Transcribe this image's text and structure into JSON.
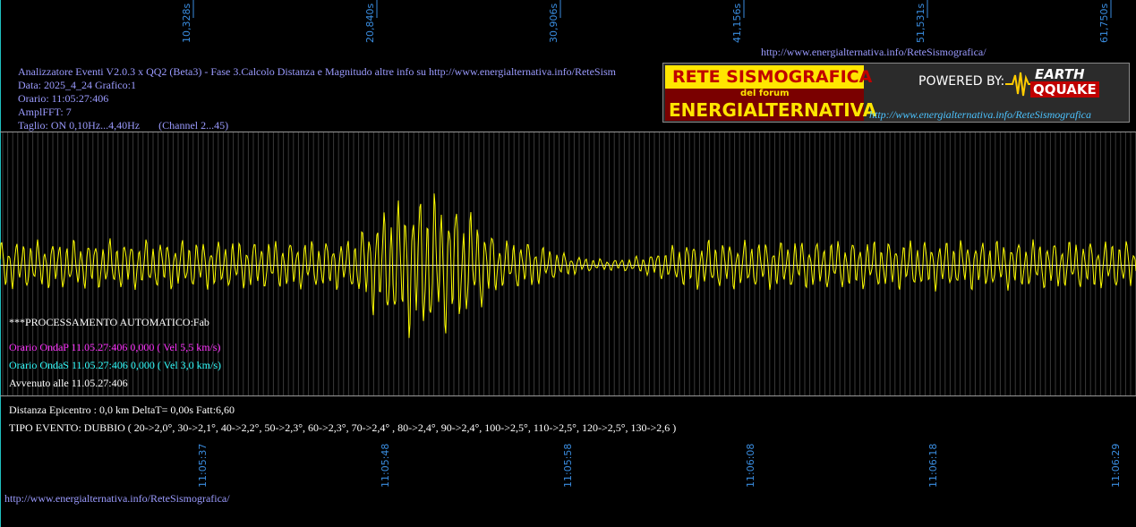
{
  "top_url": "http://www.energialternativa.info/ReteSismografica/",
  "time_axis_top": [
    "10,328s",
    "20,840s",
    "30,906s",
    "41,156s",
    "51,531s",
    "61,750s"
  ],
  "header": {
    "lines": [
      "Analizzatore Eventi V2.0.3 x QQ2 (Beta3) - Fase 3.Calcolo Distanza e Magnitudo altre info su http://www.energialternativa.info/ReteSism",
      "Data: 2025_4_24 Grafico:1",
      "Orario: 11:05:27:406",
      "AmplFFT: 7",
      "Taglio: ON 0,10Hz...4,40Hz       (Channel 2...45)"
    ]
  },
  "logo": {
    "title": "RETE SISMOGRAFICA",
    "subtitle": "del forum",
    "name": "ENERGIALTERNATIVA",
    "powered": "POWERED BY:",
    "brand_top": "EARTH",
    "brand_bottom": "QQUAKE",
    "url": "http://www.energialternativa.info/ReteSismografica"
  },
  "processing": {
    "status": "***PROCESSAMENTO AUTOMATICO:Fab",
    "p_wave": "Orario OndaP 11.05.27:406  0,000 ( Vel 5,5 km/s)",
    "s_wave": "Orario OndaS 11.05.27:406  0,000 ( Vel 3,0 km/s)",
    "occurred": "Avvenuto alle 11.05.27:406"
  },
  "details": [
    "Distanza Epicentro : 0,0 km DeltaT= 0,00s  Fatt:6,60",
    "TIPO EVENTO: DUBBIO ( 20->2,0°, 30->2,1°, 40->2,2°, 50->2,3°, 60->2,3°, 70->2,4° , 80->2,4°, 90->2,4°, 100->2,5°, 110->2,5°, 120->2,5°, 130->2,6 )"
  ],
  "time_axis_bottom": [
    "11:05:37",
    "11:05:48",
    "11:05:58",
    "11:06:08",
    "11:06:18",
    "11:06:29"
  ],
  "footer_url": "http://www.energialternativa.info/ReteSismografica/"
}
